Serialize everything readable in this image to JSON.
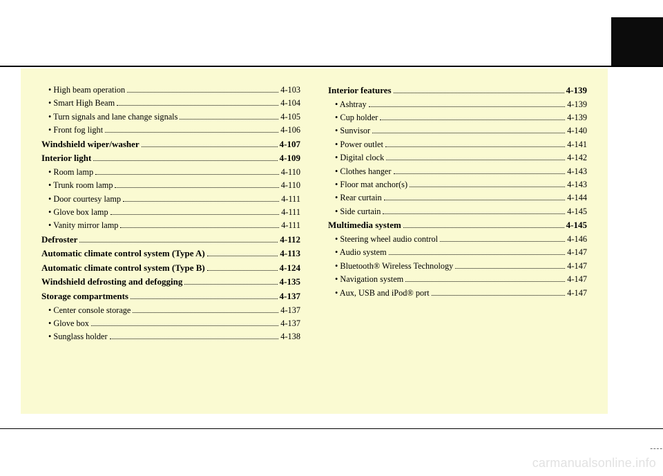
{
  "watermark": "carmanualsonline.info",
  "dashes": "----",
  "columns": [
    [
      {
        "t": "sub",
        "label": "• High beam operation",
        "page": "4-103"
      },
      {
        "t": "sub",
        "label": "• Smart High Beam",
        "page": "4-104"
      },
      {
        "t": "sub",
        "label": "• Turn signals and lane change signals",
        "page": "4-105"
      },
      {
        "t": "sub",
        "label": "• Front fog light",
        "page": "4-106"
      },
      {
        "t": "section",
        "label": "Windshield wiper/washer",
        "page": "4-107"
      },
      {
        "t": "section",
        "label": "Interior light",
        "page": "4-109"
      },
      {
        "t": "sub",
        "label": "• Room lamp",
        "page": "4-110"
      },
      {
        "t": "sub",
        "label": "• Trunk room lamp",
        "page": "4-110"
      },
      {
        "t": "sub",
        "label": "• Door courtesy lamp",
        "page": "4-111"
      },
      {
        "t": "sub",
        "label": "• Glove box lamp",
        "page": "4-111"
      },
      {
        "t": "sub",
        "label": "• Vanity mirror lamp",
        "page": "4-111"
      },
      {
        "t": "section",
        "label": "Defroster",
        "page": "4-112"
      },
      {
        "t": "section",
        "label": "Automatic climate control system (Type A)",
        "page": "4-113"
      },
      {
        "t": "section",
        "label": "Automatic climate control system (Type B)",
        "page": "4-124"
      },
      {
        "t": "section",
        "label": "Windshield defrosting and defogging",
        "page": "4-135"
      },
      {
        "t": "section",
        "label": "Storage compartments",
        "page": "4-137"
      },
      {
        "t": "sub",
        "label": "• Center console storage",
        "page": "4-137"
      },
      {
        "t": "sub",
        "label": "• Glove box",
        "page": "4-137"
      },
      {
        "t": "sub",
        "label": "• Sunglass holder",
        "page": "4-138"
      }
    ],
    [
      {
        "t": "section",
        "label": "Interior features",
        "page": "4-139"
      },
      {
        "t": "sub",
        "label": "• Ashtray",
        "page": "4-139"
      },
      {
        "t": "sub",
        "label": "• Cup holder",
        "page": "4-139"
      },
      {
        "t": "sub",
        "label": "• Sunvisor",
        "page": "4-140"
      },
      {
        "t": "sub",
        "label": "• Power outlet",
        "page": "4-141"
      },
      {
        "t": "sub",
        "label": "• Digital clock",
        "page": "4-142"
      },
      {
        "t": "sub",
        "label": "• Clothes hanger",
        "page": "4-143"
      },
      {
        "t": "sub",
        "label": "• Floor mat anchor(s)",
        "page": "4-143"
      },
      {
        "t": "sub",
        "label": "• Rear curtain",
        "page": "4-144"
      },
      {
        "t": "sub",
        "label": "• Side curtain",
        "page": "4-145"
      },
      {
        "t": "section",
        "label": "Multimedia system",
        "page": "4-145"
      },
      {
        "t": "sub",
        "label": "• Steering wheel audio control",
        "page": "4-146"
      },
      {
        "t": "sub",
        "label": "• Audio system",
        "page": "4-147"
      },
      {
        "t": "sub",
        "label": "• Bluetooth® Wireless Technology",
        "page": "4-147"
      },
      {
        "t": "sub",
        "label": "• Navigation system",
        "page": "4-147"
      },
      {
        "t": "sub",
        "label": "• Aux, USB and iPod® port",
        "page": "4-147"
      }
    ]
  ]
}
